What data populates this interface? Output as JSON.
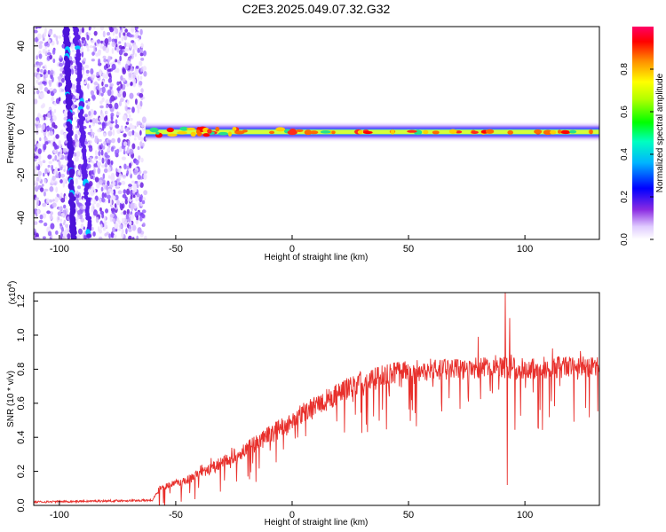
{
  "title": "C2E3.2025.049.07.32.G32",
  "chart_data": [
    {
      "type": "heatmap",
      "xlabel": "Height of straight line (km)",
      "ylabel": "Frequency (Hz)",
      "xlim": [
        -111,
        132
      ],
      "ylim": [
        -50,
        49
      ],
      "x_ticks": [
        "-100",
        "-50",
        "0",
        "50",
        "100"
      ],
      "y_ticks": [
        "-40",
        "-20",
        "0",
        "20",
        "40"
      ],
      "colorbar": {
        "label": "Normalized spectral amplitude",
        "ticks": [
          "0.0",
          "0.2",
          "0.4",
          "0.6",
          "0.8"
        ],
        "range": [
          0,
          1
        ]
      },
      "features": {
        "noise_region_x": [
          -111,
          -63
        ],
        "tone_region_x": [
          -63,
          132
        ],
        "tone_frequency": 0,
        "streak_1_x": [
          -97,
          -94
        ],
        "streak_2_x": [
          -93,
          -87
        ]
      }
    },
    {
      "type": "line",
      "xlabel": "Height of straight line (km)",
      "ylabel": "SNR (10 * v/v)",
      "y_multiplier_label": "(x10",
      "y_multiplier_exp": "4",
      "y_multiplier_close": ")",
      "xlim": [
        -111,
        132
      ],
      "ylim": [
        0,
        1.25
      ],
      "x_ticks": [
        "-100",
        "-50",
        "0",
        "50",
        "100"
      ],
      "y_ticks": [
        "0.0",
        "0.2",
        "0.4",
        "0.6",
        "0.8",
        "1.0",
        "1.2"
      ],
      "line_color": "#e8302c",
      "envelope": {
        "x": [
          -111,
          -60,
          -57,
          -45,
          -30,
          -20,
          -10,
          0,
          10,
          20,
          30,
          40,
          50,
          60,
          70,
          80,
          88,
          96,
          110,
          132
        ],
        "y": [
          0.02,
          0.03,
          0.1,
          0.15,
          0.25,
          0.33,
          0.41,
          0.5,
          0.58,
          0.66,
          0.73,
          0.77,
          0.79,
          0.8,
          0.8,
          0.81,
          0.82,
          0.8,
          0.81,
          0.82
        ]
      },
      "spikes": [
        {
          "x": 80,
          "y": 0.99
        },
        {
          "x": 91.5,
          "y": 1.26
        },
        {
          "x": 92.5,
          "y": 0.12
        },
        {
          "x": 93.5,
          "y": 1.1
        }
      ]
    }
  ]
}
